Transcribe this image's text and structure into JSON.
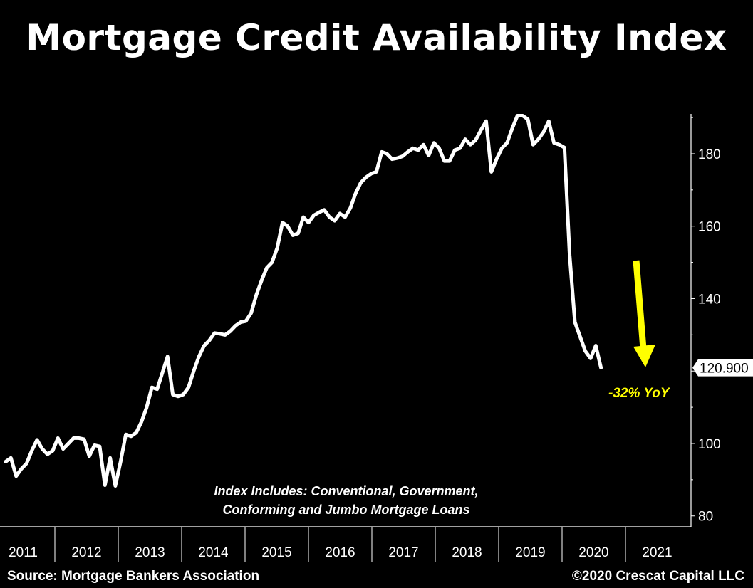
{
  "title": "Mortgage Credit Availability Index",
  "source": "Source: Mortgage Bankers Association",
  "copyright": "©2020 Crescat Capital LLC",
  "chart_data": {
    "type": "line",
    "title": "Mortgage Credit Availability Index",
    "xlabel": "",
    "ylabel": "",
    "x_ticks": [
      "2011",
      "2012",
      "2013",
      "2014",
      "2015",
      "2016",
      "2017",
      "2018",
      "2019",
      "2020",
      "2021"
    ],
    "y_ticks": [
      80,
      100,
      120,
      140,
      160,
      180
    ],
    "ylim": [
      77,
      191
    ],
    "xlim": [
      "2011-01",
      "2021-12"
    ],
    "y_axis_position": "right",
    "grid": false,
    "line_color": "#ffffff",
    "series": [
      {
        "name": "",
        "x": [
          "2011-01",
          "2011-02",
          "2011-03",
          "2011-04",
          "2011-05",
          "2011-06",
          "2011-07",
          "2011-08",
          "2011-09",
          "2011-10",
          "2011-11",
          "2011-12",
          "2012-01",
          "2012-02",
          "2012-03",
          "2012-04",
          "2012-05",
          "2012-06",
          "2012-07",
          "2012-08",
          "2012-09",
          "2012-10",
          "2012-11",
          "2012-12",
          "2013-01",
          "2013-02",
          "2013-03",
          "2013-04",
          "2013-05",
          "2013-06",
          "2013-07",
          "2013-08",
          "2013-09",
          "2013-10",
          "2013-11",
          "2013-12",
          "2014-01",
          "2014-02",
          "2014-03",
          "2014-04",
          "2014-05",
          "2014-06",
          "2014-07",
          "2014-08",
          "2014-09",
          "2014-10",
          "2014-11",
          "2014-12",
          "2015-01",
          "2015-02",
          "2015-03",
          "2015-04",
          "2015-05",
          "2015-06",
          "2015-07",
          "2015-08",
          "2015-09",
          "2015-10",
          "2015-11",
          "2015-12",
          "2016-01",
          "2016-02",
          "2016-03",
          "2016-04",
          "2016-05",
          "2016-06",
          "2016-07",
          "2016-08",
          "2016-09",
          "2016-10",
          "2016-11",
          "2016-12",
          "2017-01",
          "2017-02",
          "2017-03",
          "2017-04",
          "2017-05",
          "2017-06",
          "2017-07",
          "2017-08",
          "2017-09",
          "2017-10",
          "2017-11",
          "2017-12",
          "2018-01",
          "2018-02",
          "2018-03",
          "2018-04",
          "2018-05",
          "2018-06",
          "2018-07",
          "2018-08",
          "2018-09",
          "2018-10",
          "2018-11",
          "2018-12",
          "2019-01",
          "2019-02",
          "2019-03",
          "2019-04",
          "2019-05",
          "2019-06",
          "2019-07",
          "2019-08",
          "2019-09",
          "2019-10",
          "2019-11",
          "2019-12",
          "2020-01",
          "2020-02",
          "2020-03",
          "2020-04",
          "2020-05",
          "2020-06",
          "2020-07"
        ],
        "values": [
          95.0,
          96.0,
          91.0,
          93.0,
          94.5,
          98.0,
          101.0,
          98.5,
          97.0,
          98.0,
          101.5,
          98.5,
          100.0,
          101.5,
          101.5,
          101.2,
          96.5,
          99.5,
          99.2,
          88.5,
          96.0,
          88.3,
          95.0,
          102.5,
          102.0,
          103.0,
          106.0,
          110.0,
          115.5,
          115.0,
          119.5,
          124.0,
          113.5,
          113.0,
          113.5,
          115.5,
          120.0,
          124.0,
          127.0,
          128.5,
          130.5,
          130.3,
          130.0,
          131.0,
          132.5,
          133.5,
          133.8,
          136.0,
          141.0,
          145.0,
          148.5,
          150.0,
          154.0,
          161.0,
          160.0,
          157.5,
          158.0,
          162.5,
          161.0,
          163.0,
          163.8,
          164.5,
          162.5,
          161.5,
          163.5,
          162.5,
          165.0,
          169.0,
          172.0,
          173.5,
          174.5,
          175.0,
          180.5,
          180.0,
          178.5,
          178.8,
          179.3,
          180.5,
          181.5,
          181.0,
          182.5,
          179.5,
          183.0,
          181.5,
          178.0,
          178.0,
          181.0,
          181.5,
          184.0,
          182.5,
          183.8,
          186.5,
          189.0,
          175.0,
          178.5,
          181.5,
          183.0,
          187.0,
          190.5,
          190.5,
          189.5,
          182.5,
          184.0,
          186.0,
          189.0,
          183.0,
          182.5,
          181.7,
          152.0,
          133.5,
          129.5,
          125.5,
          123.5,
          127.0,
          120.9
        ]
      }
    ],
    "last_value_label": "120.900",
    "annotations": [
      {
        "text": "-32% YoY",
        "color": "#ffff00",
        "type": "arrow-down"
      },
      {
        "text": "Index Includes: Conventional, Government,",
        "type": "note"
      },
      {
        "text": "Conforming and Jumbo Mortgage Loans",
        "type": "note"
      }
    ]
  }
}
